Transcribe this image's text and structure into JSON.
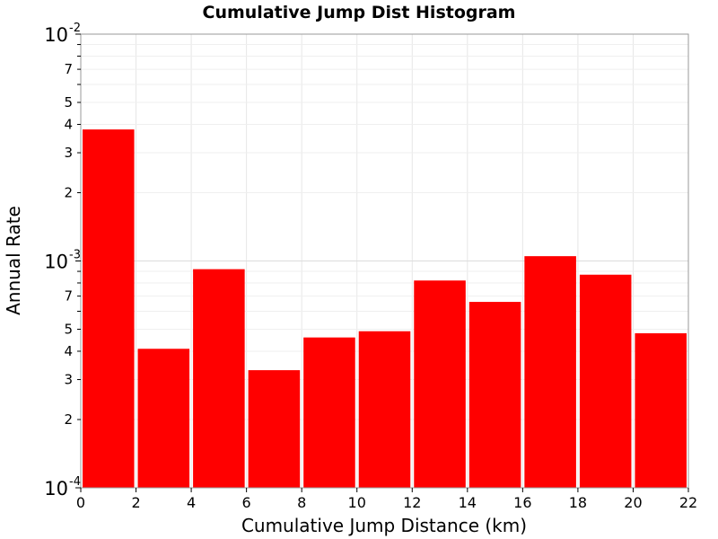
{
  "chart_data": {
    "type": "bar",
    "title": "Cumulative Jump Dist Histogram",
    "xlabel": "Cumulative Jump Distance (km)",
    "ylabel": "Annual Rate",
    "y_scale": "log",
    "xlim": [
      0,
      22
    ],
    "ylim": [
      0.0001,
      0.01
    ],
    "grid": true,
    "bar_color": "#ff0000",
    "x_ticks": [
      "0",
      "2",
      "4",
      "6",
      "8",
      "10",
      "12",
      "14",
      "16",
      "18",
      "20",
      "22"
    ],
    "y_decade_ticks": [
      {
        "base": "10",
        "exp": "-4"
      },
      {
        "base": "10",
        "exp": "-3"
      },
      {
        "base": "10",
        "exp": "-2"
      }
    ],
    "y_minor_tick_labels": [
      "2",
      "3",
      "4",
      "5",
      "7"
    ],
    "bins": [
      {
        "x0": 0,
        "x1": 2,
        "value": 0.0038
      },
      {
        "x0": 2,
        "x1": 4,
        "value": 0.00041
      },
      {
        "x0": 4,
        "x1": 6,
        "value": 0.00092
      },
      {
        "x0": 6,
        "x1": 8,
        "value": 0.00033
      },
      {
        "x0": 8,
        "x1": 10,
        "value": 0.00046
      },
      {
        "x0": 10,
        "x1": 12,
        "value": 0.00049
      },
      {
        "x0": 12,
        "x1": 14,
        "value": 0.00082
      },
      {
        "x0": 14,
        "x1": 16,
        "value": 0.00066
      },
      {
        "x0": 16,
        "x1": 18,
        "value": 0.00105
      },
      {
        "x0": 18,
        "x1": 20,
        "value": 0.00087
      },
      {
        "x0": 20,
        "x1": 22,
        "value": 0.00048
      }
    ]
  }
}
